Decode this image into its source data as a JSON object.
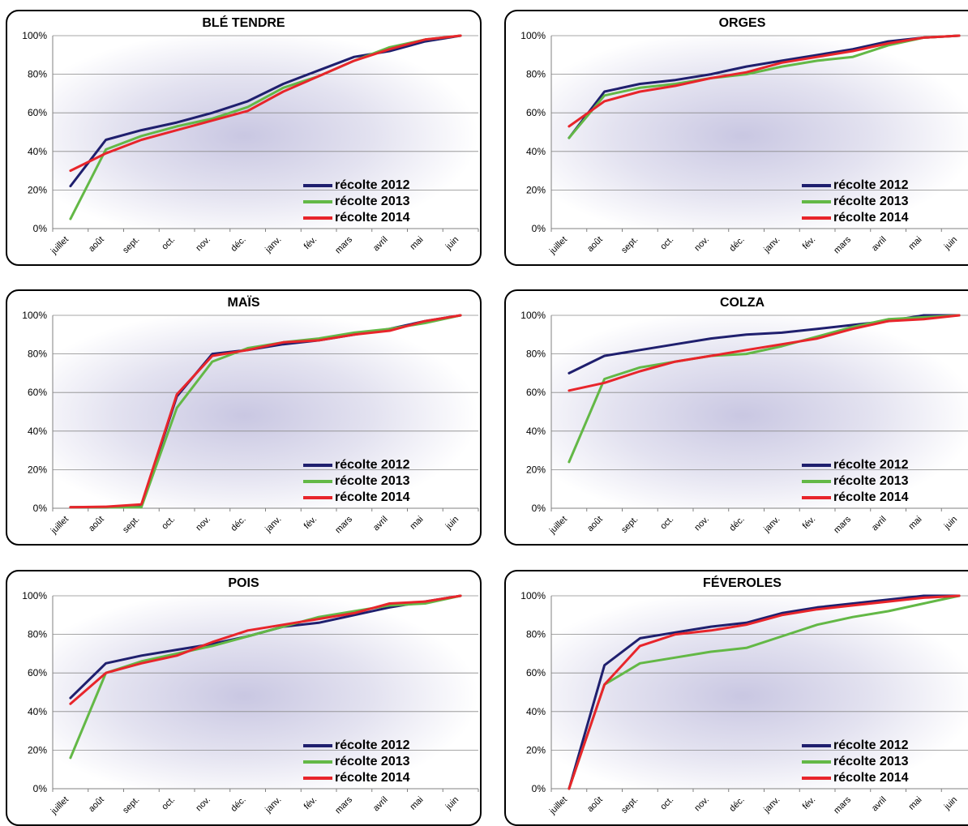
{
  "series_colors": [
    "#1f1f6e",
    "#63b846",
    "#e8252b"
  ],
  "ytick_labels": [
    "0%",
    "20%",
    "40%",
    "60%",
    "80%",
    "100%"
  ],
  "chart_data": [
    {
      "type": "line",
      "title": "BLÉ TENDRE",
      "x": [
        "juillet",
        "août",
        "sept.",
        "oct.",
        "nov.",
        "déc.",
        "janv.",
        "fév.",
        "mars",
        "avril",
        "mai",
        "juin"
      ],
      "ylim": [
        0,
        100
      ],
      "legend_position": "lower-right",
      "series": [
        {
          "name": "récolte 2012",
          "values": [
            22,
            46,
            51,
            55,
            60,
            66,
            75,
            82,
            89,
            92,
            97,
            100
          ]
        },
        {
          "name": "récolte 2013",
          "values": [
            5,
            41,
            48,
            53,
            57,
            63,
            73,
            79,
            87,
            94,
            98,
            100
          ]
        },
        {
          "name": "récolte 2014",
          "values": [
            30,
            39,
            46,
            51,
            56,
            61,
            71,
            79,
            87,
            93,
            98,
            100
          ]
        }
      ]
    },
    {
      "type": "line",
      "title": "ORGES",
      "x": [
        "juillet",
        "août",
        "sept.",
        "oct.",
        "nov.",
        "déc.",
        "janv.",
        "fév.",
        "mars",
        "avril",
        "mai",
        "juin"
      ],
      "ylim": [
        0,
        100
      ],
      "legend_position": "lower-right",
      "series": [
        {
          "name": "récolte 2012",
          "values": [
            47,
            71,
            75,
            77,
            80,
            84,
            87,
            90,
            93,
            97,
            99,
            100
          ]
        },
        {
          "name": "récolte 2013",
          "values": [
            47,
            69,
            73,
            75,
            78,
            80,
            84,
            87,
            89,
            95,
            99,
            100
          ]
        },
        {
          "name": "récolte 2014",
          "values": [
            53,
            66,
            71,
            74,
            78,
            81,
            86,
            89,
            92,
            96,
            99,
            100
          ]
        }
      ]
    },
    {
      "type": "line",
      "title": "MAÏS",
      "x": [
        "juillet",
        "août",
        "sept.",
        "oct.",
        "nov.",
        "déc.",
        "janv.",
        "fév.",
        "mars",
        "avril",
        "mai",
        "juin"
      ],
      "ylim": [
        0,
        100
      ],
      "legend_position": "lower-right",
      "series": [
        {
          "name": "récolte 2012",
          "values": [
            0.5,
            0.5,
            1.5,
            58,
            80,
            82,
            85,
            87,
            90,
            93,
            97,
            100
          ]
        },
        {
          "name": "récolte 2013",
          "values": [
            0.5,
            0.5,
            0.5,
            52,
            76,
            83,
            86,
            88,
            91,
            93,
            96,
            100
          ]
        },
        {
          "name": "récolte 2014",
          "values": [
            0.5,
            0.8,
            2,
            59,
            79,
            82,
            86,
            87,
            90,
            92,
            97,
            100
          ]
        }
      ]
    },
    {
      "type": "line",
      "title": "COLZA",
      "x": [
        "juillet",
        "août",
        "sept.",
        "oct.",
        "nov.",
        "déc.",
        "janv.",
        "fév.",
        "mars",
        "avril",
        "mai",
        "juin"
      ],
      "ylim": [
        0,
        100
      ],
      "legend_position": "lower-right",
      "series": [
        {
          "name": "récolte 2012",
          "values": [
            70,
            79,
            82,
            85,
            88,
            90,
            91,
            93,
            95,
            97,
            100,
            100
          ]
        },
        {
          "name": "récolte 2013",
          "values": [
            24,
            67,
            73,
            76,
            79,
            80,
            84,
            89,
            94,
            98,
            99,
            100
          ]
        },
        {
          "name": "récolte 2014",
          "values": [
            61,
            65,
            71,
            76,
            79,
            82,
            85,
            88,
            93,
            97,
            98,
            100
          ]
        }
      ]
    },
    {
      "type": "line",
      "title": "POIS",
      "x": [
        "juillet",
        "août",
        "sept.",
        "oct.",
        "nov.",
        "déc.",
        "janv.",
        "fév.",
        "mars",
        "avril",
        "mai",
        "juin"
      ],
      "ylim": [
        0,
        100
      ],
      "legend_position": "lower-right",
      "series": [
        {
          "name": "récolte 2012",
          "values": [
            47,
            65,
            69,
            72,
            75,
            79,
            84,
            86,
            90,
            94,
            97,
            100
          ]
        },
        {
          "name": "récolte 2013",
          "values": [
            16,
            60,
            66,
            70,
            74,
            79,
            84,
            89,
            92,
            95,
            96,
            100
          ]
        },
        {
          "name": "récolte 2014",
          "values": [
            44,
            60,
            65,
            69,
            76,
            82,
            85,
            88,
            91,
            96,
            97,
            100
          ]
        }
      ]
    },
    {
      "type": "line",
      "title": "FÉVEROLES",
      "x": [
        "juillet",
        "août",
        "sept.",
        "oct.",
        "nov.",
        "déc.",
        "janv.",
        "fév.",
        "mars",
        "avril",
        "mai",
        "juin"
      ],
      "ylim": [
        0,
        100
      ],
      "legend_position": "lower-right",
      "series": [
        {
          "name": "récolte 2012",
          "values": [
            0,
            64,
            78,
            81,
            84,
            86,
            91,
            94,
            96,
            98,
            100,
            100
          ]
        },
        {
          "name": "récolte 2013",
          "values": [
            0,
            54,
            65,
            68,
            71,
            73,
            79,
            85,
            89,
            92,
            96,
            100
          ]
        },
        {
          "name": "récolte 2014",
          "values": [
            0,
            54,
            74,
            80,
            82,
            85,
            90,
            93,
            95,
            97,
            99,
            100
          ]
        }
      ]
    }
  ]
}
